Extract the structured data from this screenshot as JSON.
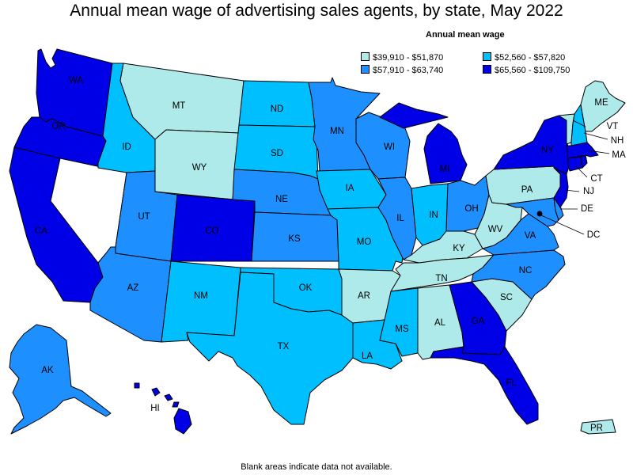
{
  "title": "Annual mean wage of advertising sales agents, by state, May 2022",
  "legend": {
    "title": "Annual mean wage",
    "items": [
      {
        "label": "$39,910 - $51,870",
        "color": "#aeeaea"
      },
      {
        "label": "$52,560 - $57,820",
        "color": "#00bfff"
      },
      {
        "label": "$57,910 - $63,740",
        "color": "#1e8fff"
      },
      {
        "label": "$65,560 - $109,750",
        "color": "#0000e6"
      }
    ]
  },
  "no_data_color": "#ffffff",
  "footnote": "Blank areas indicate data not available.",
  "states": [
    {
      "abbr": "WA",
      "tier": 3
    },
    {
      "abbr": "OR",
      "tier": 3
    },
    {
      "abbr": "CA",
      "tier": 3
    },
    {
      "abbr": "NV",
      "tier": null
    },
    {
      "abbr": "ID",
      "tier": 1
    },
    {
      "abbr": "MT",
      "tier": 0
    },
    {
      "abbr": "WY",
      "tier": 0
    },
    {
      "abbr": "UT",
      "tier": 2
    },
    {
      "abbr": "AZ",
      "tier": 2
    },
    {
      "abbr": "CO",
      "tier": 3
    },
    {
      "abbr": "NM",
      "tier": 1
    },
    {
      "abbr": "ND",
      "tier": 1
    },
    {
      "abbr": "SD",
      "tier": 1
    },
    {
      "abbr": "NE",
      "tier": 2
    },
    {
      "abbr": "KS",
      "tier": 2
    },
    {
      "abbr": "OK",
      "tier": 1
    },
    {
      "abbr": "TX",
      "tier": 1
    },
    {
      "abbr": "MN",
      "tier": 2
    },
    {
      "abbr": "IA",
      "tier": 1
    },
    {
      "abbr": "MO",
      "tier": 1
    },
    {
      "abbr": "AR",
      "tier": 0
    },
    {
      "abbr": "LA",
      "tier": 1
    },
    {
      "abbr": "WI",
      "tier": 2
    },
    {
      "abbr": "IL",
      "tier": 2
    },
    {
      "abbr": "MI",
      "tier": 3
    },
    {
      "abbr": "IN",
      "tier": 1
    },
    {
      "abbr": "OH",
      "tier": 2
    },
    {
      "abbr": "KY",
      "tier": 0
    },
    {
      "abbr": "TN",
      "tier": 0
    },
    {
      "abbr": "MS",
      "tier": 1
    },
    {
      "abbr": "AL",
      "tier": 0
    },
    {
      "abbr": "GA",
      "tier": 3
    },
    {
      "abbr": "FL",
      "tier": 3
    },
    {
      "abbr": "SC",
      "tier": 0
    },
    {
      "abbr": "NC",
      "tier": 2
    },
    {
      "abbr": "VA",
      "tier": 2
    },
    {
      "abbr": "WV",
      "tier": 0
    },
    {
      "abbr": "PA",
      "tier": 0
    },
    {
      "abbr": "NY",
      "tier": 3
    },
    {
      "abbr": "VT",
      "tier": 0
    },
    {
      "abbr": "NH",
      "tier": 1
    },
    {
      "abbr": "ME",
      "tier": 0
    },
    {
      "abbr": "MA",
      "tier": 3
    },
    {
      "abbr": "CT",
      "tier": 3
    },
    {
      "abbr": "RI",
      "tier": 3
    },
    {
      "abbr": "NJ",
      "tier": 3
    },
    {
      "abbr": "DE",
      "tier": 2
    },
    {
      "abbr": "MD",
      "tier": 2
    },
    {
      "abbr": "DC",
      "tier": null
    },
    {
      "abbr": "AK",
      "tier": 2
    },
    {
      "abbr": "HI",
      "tier": 3
    },
    {
      "abbr": "PR",
      "tier": 0
    }
  ],
  "labels": {
    "WA": "WA",
    "OR": "OR",
    "CA": "CA",
    "ID": "ID",
    "MT": "MT",
    "WY": "WY",
    "UT": "UT",
    "AZ": "AZ",
    "CO": "CO",
    "NM": "NM",
    "ND": "ND",
    "SD": "SD",
    "NE": "NE",
    "KS": "KS",
    "OK": "OK",
    "TX": "TX",
    "MN": "MN",
    "IA": "IA",
    "MO": "MO",
    "AR": "AR",
    "LA": "LA",
    "WI": "WI",
    "IL": "IL",
    "MI": "MI",
    "IN": "IN",
    "OH": "OH",
    "KY": "KY",
    "TN": "TN",
    "MS": "MS",
    "AL": "AL",
    "GA": "GA",
    "FL": "FL",
    "SC": "SC",
    "NC": "NC",
    "VA": "VA",
    "WV": "WV",
    "PA": "PA",
    "NY": "NY",
    "ME": "ME",
    "VT": "VT",
    "NH": "NH",
    "MA": "MA",
    "CT": "CT",
    "NJ": "NJ",
    "DE": "DE",
    "DC": "DC",
    "AK": "AK",
    "HI": "HI",
    "PR": "PR"
  }
}
